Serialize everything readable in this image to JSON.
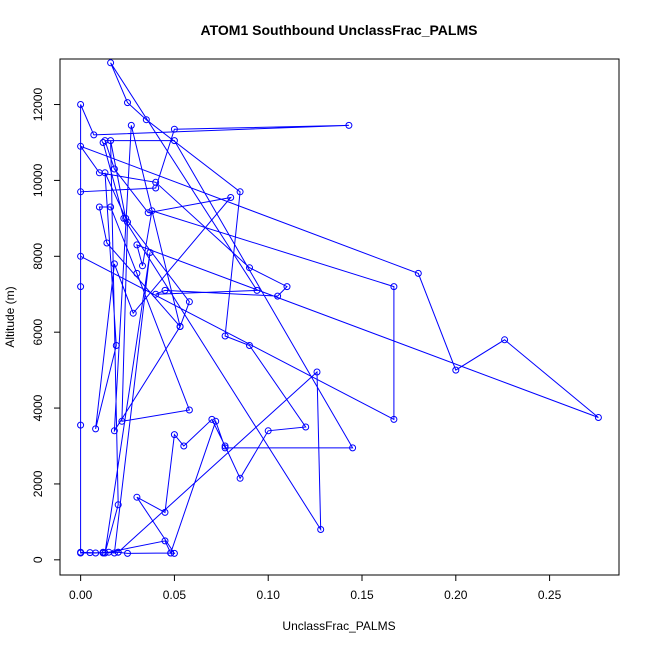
{
  "chart_data": {
    "type": "line",
    "title": "ATOM1 Southbound UnclassFrac_PALMS",
    "xlabel": "UnclassFrac_PALMS",
    "ylabel": "Altitude (m)",
    "xlim": [
      -0.011,
      0.287
    ],
    "ylim": [
      -400,
      13200
    ],
    "xticks": [
      0.0,
      0.05,
      0.1,
      0.15,
      0.2,
      0.25
    ],
    "xtick_labels": [
      "0.00",
      "0.05",
      "0.10",
      "0.15",
      "0.20",
      "0.25"
    ],
    "yticks": [
      0,
      2000,
      4000,
      6000,
      8000,
      10000,
      12000
    ],
    "ytick_labels": [
      "0",
      "2000",
      "4000",
      "6000",
      "8000",
      "10000",
      "12000"
    ],
    "grid": false,
    "legend": "none",
    "color": "#0000ff",
    "marker": "open-circle",
    "series": [
      {
        "points": [
          [
            0.0,
            200
          ],
          [
            0.005,
            190
          ],
          [
            0.012,
            180
          ],
          [
            0.02,
            200
          ],
          [
            0.025,
            170
          ],
          [
            0.048,
            180
          ],
          [
            0.05,
            170
          ],
          [
            0.03,
            1650
          ],
          [
            0.045,
            1250
          ],
          [
            0.05,
            3300
          ],
          [
            0.055,
            3000
          ],
          [
            0.07,
            3700
          ],
          [
            0.077,
            3000
          ],
          [
            0.085,
            2150
          ],
          [
            0.1,
            3400
          ],
          [
            0.12,
            3500
          ],
          [
            0.09,
            5650
          ],
          [
            0.077,
            5900
          ],
          [
            0.085,
            9700
          ],
          [
            0.035,
            11600
          ],
          [
            0.025,
            12050
          ],
          [
            0.016,
            13100
          ],
          [
            0.094,
            7100
          ],
          [
            0.04,
            7000
          ],
          [
            0.045,
            7100
          ],
          [
            0.105,
            6950
          ],
          [
            0.11,
            7200
          ],
          [
            0.09,
            7700
          ],
          [
            0.04,
            9950
          ],
          [
            0.01,
            10200
          ],
          [
            0.0,
            10900
          ],
          [
            0.18,
            7550
          ],
          [
            0.2,
            5000
          ],
          [
            0.226,
            5800
          ],
          [
            0.276,
            3750
          ],
          [
            0.03,
            8300
          ],
          [
            0.033,
            7750
          ],
          [
            0.038,
            9200
          ],
          [
            0.167,
            7200
          ],
          [
            0.167,
            3700
          ],
          [
            0.0,
            8000
          ],
          [
            0.0,
            7200
          ],
          [
            0.0,
            9700
          ],
          [
            0.04,
            9800
          ],
          [
            0.05,
            11350
          ],
          [
            0.143,
            11450
          ],
          [
            0.007,
            11200
          ],
          [
            0.0,
            12000
          ],
          [
            0.0,
            3550
          ],
          [
            0.0,
            180
          ],
          [
            0.008,
            180
          ],
          [
            0.015,
            200
          ],
          [
            0.045,
            500
          ],
          [
            0.048,
            180
          ],
          [
            0.072,
            3650
          ],
          [
            0.077,
            2950
          ],
          [
            0.145,
            2950
          ],
          [
            0.05,
            11050
          ],
          [
            0.013,
            11050
          ],
          [
            0.018,
            10300
          ],
          [
            0.036,
            9150
          ],
          [
            0.08,
            9550
          ],
          [
            0.028,
            6500
          ],
          [
            0.018,
            7800
          ],
          [
            0.008,
            3450
          ],
          [
            0.019,
            5650
          ],
          [
            0.013,
            10200
          ],
          [
            0.025,
            8900
          ],
          [
            0.022,
            3650
          ],
          [
            0.058,
            3950
          ],
          [
            0.03,
            7550
          ],
          [
            0.016,
            9300
          ],
          [
            0.01,
            9300
          ],
          [
            0.014,
            8350
          ],
          [
            0.053,
            6150
          ],
          [
            0.018,
            3400
          ],
          [
            0.027,
            11450
          ],
          [
            0.053,
            6150
          ],
          [
            0.058,
            6800
          ],
          [
            0.024,
            9000
          ],
          [
            0.016,
            11050
          ],
          [
            0.02,
            1450
          ],
          [
            0.013,
            180
          ],
          [
            0.037,
            8100
          ],
          [
            0.018,
            180
          ],
          [
            0.012,
            200
          ],
          [
            0.02,
            200
          ],
          [
            0.126,
            4950
          ],
          [
            0.128,
            800
          ],
          [
            0.023,
            9000
          ],
          [
            0.012,
            11000
          ]
        ]
      }
    ]
  }
}
